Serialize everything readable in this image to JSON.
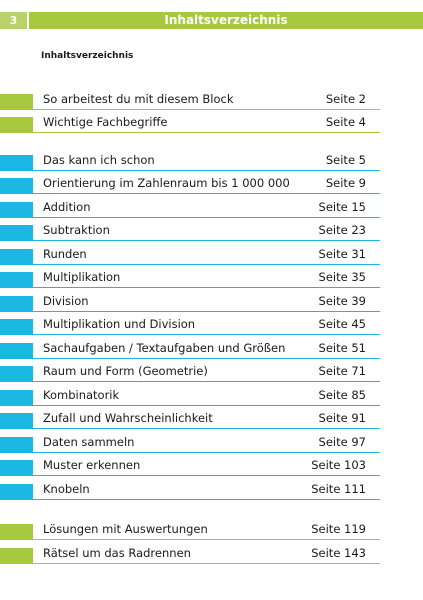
{
  "header": {
    "page_number": "3",
    "title": "Inhaltsverzeichnis"
  },
  "subtitle": "Inhaltsverzeichnis",
  "colors": {
    "green": "#a6c93d",
    "blue": "#1ab8e3"
  },
  "entries": [
    {
      "label": "So arbeitest du mit diesem Block",
      "page": "Seite 2",
      "color": "green"
    },
    {
      "label": "Wichtige Fachbegriffe",
      "page": "Seite 4",
      "color": "green"
    },
    {
      "label": "Das kann ich schon",
      "page": "Seite 5",
      "color": "blue"
    },
    {
      "label": "Orientierung im Zahlenraum bis 1 000 000",
      "page": "Seite 9",
      "color": "blue"
    },
    {
      "label": "Addition",
      "page": "Seite 15",
      "color": "blue"
    },
    {
      "label": "Subtraktion",
      "page": "Seite 23",
      "color": "blue"
    },
    {
      "label": "Runden",
      "page": "Seite 31",
      "color": "blue"
    },
    {
      "label": "Multiplikation",
      "page": "Seite 35",
      "color": "blue"
    },
    {
      "label": "Division",
      "page": "Seite 39",
      "color": "blue"
    },
    {
      "label": "Multiplikation und Division",
      "page": "Seite 45",
      "color": "blue"
    },
    {
      "label": "Sachaufgaben / Textaufgaben und Größen",
      "page": "Seite 51",
      "color": "blue"
    },
    {
      "label": "Raum und Form (Geometrie)",
      "page": "Seite 71",
      "color": "blue"
    },
    {
      "label": "Kombinatorik",
      "page": "Seite 85",
      "color": "blue"
    },
    {
      "label": "Zufall und Wahrscheinlichkeit",
      "page": "Seite 91",
      "color": "blue"
    },
    {
      "label": "Daten sammeln",
      "page": "Seite 97",
      "color": "blue"
    },
    {
      "label": "Muster erkennen",
      "page": "Seite 103",
      "color": "blue"
    },
    {
      "label": "Knobeln",
      "page": "Seite 111",
      "color": "blue"
    },
    {
      "label": "Lösungen mit Auswertungen",
      "page": "Seite 119",
      "color": "green"
    },
    {
      "label": "Rätsel um das Radrennen",
      "page": "Seite 143",
      "color": "green"
    }
  ]
}
